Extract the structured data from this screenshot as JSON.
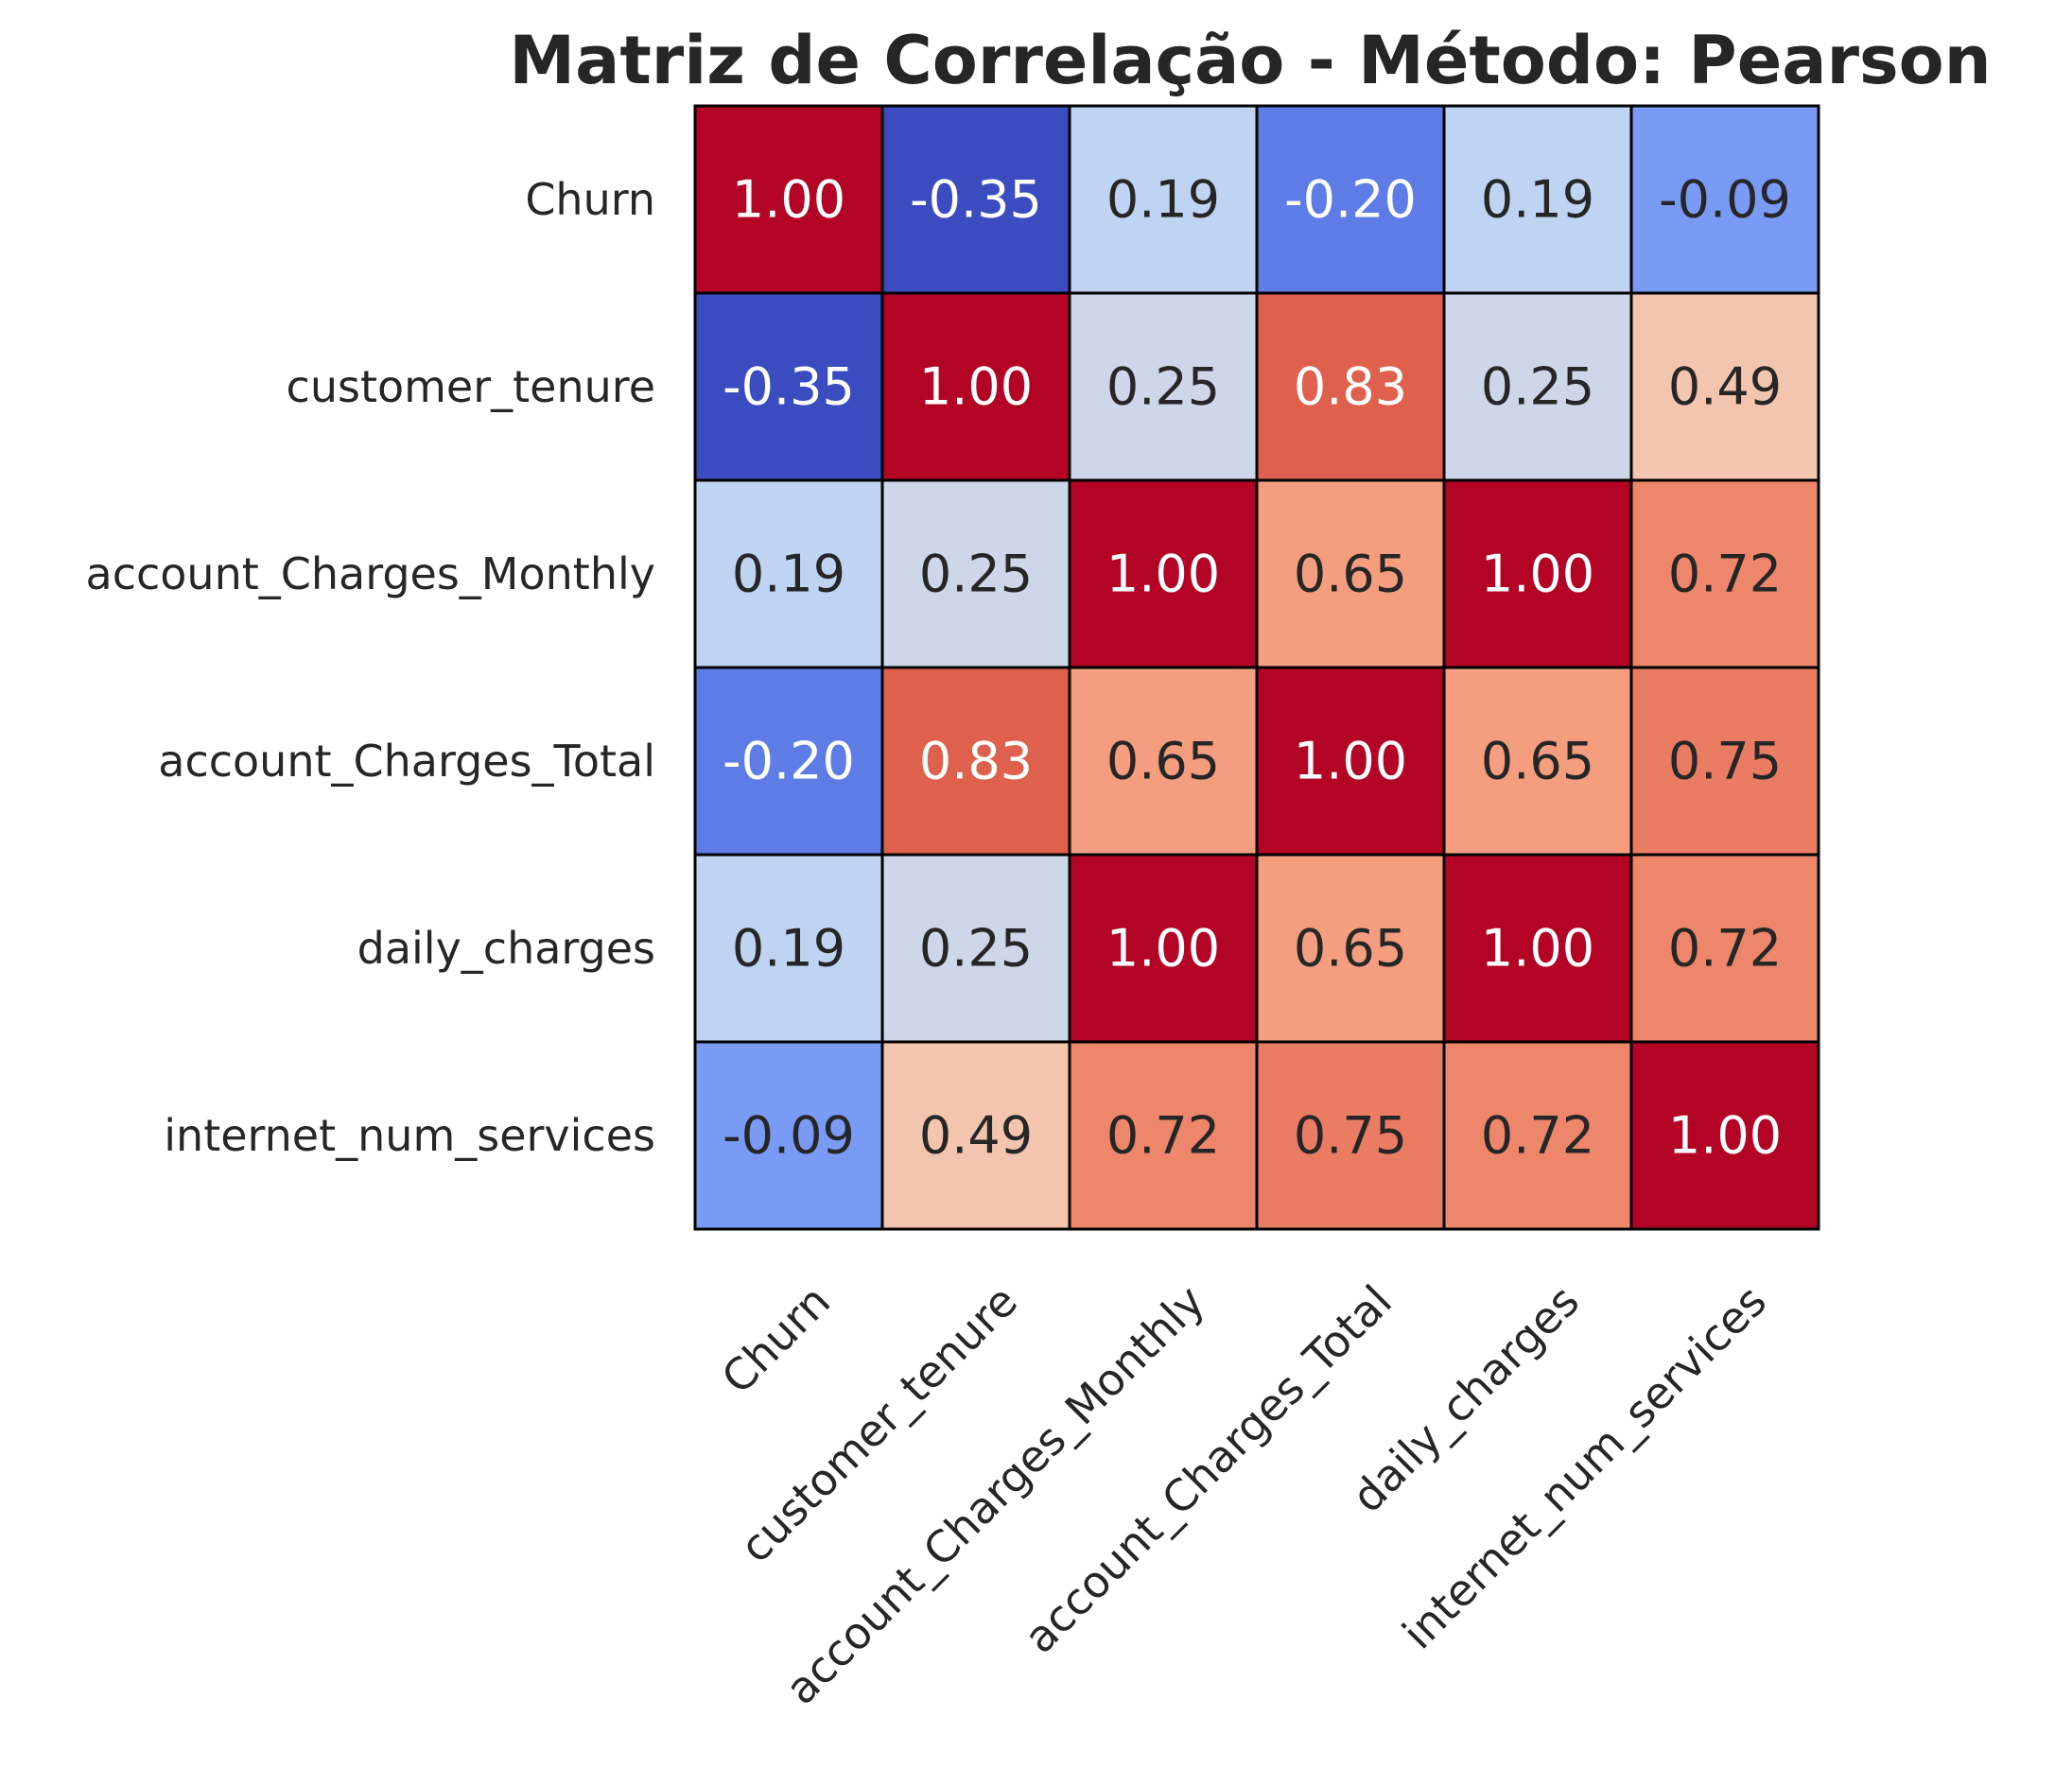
{
  "chart_data": {
    "type": "heatmap",
    "title": "Matriz de Correlação - Método: Pearson",
    "colormap": "coolwarm",
    "vmin": -0.35,
    "vmax": 1.0,
    "colorbar": false,
    "rows": [
      "Churn",
      "customer_tenure",
      "account_Charges_Monthly",
      "account_Charges_Total",
      "daily_charges",
      "internet_num_services"
    ],
    "columns": [
      "Churn",
      "customer_tenure",
      "account_Charges_Monthly",
      "account_Charges_Total",
      "daily_charges",
      "internet_num_services"
    ],
    "values": [
      [
        1.0,
        -0.35,
        0.19,
        -0.2,
        0.19,
        -0.09
      ],
      [
        -0.35,
        1.0,
        0.25,
        0.83,
        0.25,
        0.49
      ],
      [
        0.19,
        0.25,
        1.0,
        0.65,
        1.0,
        0.72
      ],
      [
        -0.2,
        0.83,
        0.65,
        1.0,
        0.65,
        0.75
      ],
      [
        0.19,
        0.25,
        1.0,
        0.65,
        1.0,
        0.72
      ],
      [
        -0.09,
        0.49,
        0.72,
        0.75,
        0.72,
        1.0
      ]
    ],
    "labels": [
      [
        "1.00",
        "-0.35",
        "0.19",
        "-0.20",
        "0.19",
        "-0.09"
      ],
      [
        "-0.35",
        "1.00",
        "0.25",
        "0.83",
        "0.25",
        "0.49"
      ],
      [
        "0.19",
        "0.25",
        "1.00",
        "0.65",
        "1.00",
        "0.72"
      ],
      [
        "-0.20",
        "0.83",
        "0.65",
        "1.00",
        "0.65",
        "0.75"
      ],
      [
        "0.19",
        "0.25",
        "1.00",
        "0.65",
        "1.00",
        "0.72"
      ],
      [
        "-0.09",
        "0.49",
        "0.72",
        "0.75",
        "0.72",
        "1.00"
      ]
    ]
  }
}
